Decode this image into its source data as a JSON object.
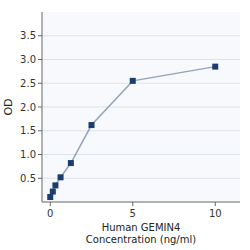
{
  "chart_data": {
    "type": "line",
    "x": [
      0,
      0.156,
      0.313,
      0.625,
      1.25,
      2.5,
      5,
      10
    ],
    "series": [
      {
        "color": "#1a3f6f",
        "marker": "square",
        "values": [
          0.105,
          0.22,
          0.35,
          0.52,
          0.82,
          1.62,
          2.55,
          2.85
        ]
      }
    ],
    "x_label": "Human GEMIN4\nConcentration (ng/ml)",
    "y_label": "OD",
    "xlim": [
      -0.5,
      11.5
    ],
    "ylim": [
      0,
      4.0
    ],
    "xticks": [
      0,
      5,
      10
    ],
    "yticks": [
      {
        "value": 0.5,
        "label": "0.5"
      },
      {
        "value": 1.0,
        "label": "1.0"
      },
      {
        "value": 1.5,
        "label": "1.5"
      },
      {
        "value": 2.0,
        "label": "2.0"
      },
      {
        "value": 2.5,
        "label": "2.5"
      },
      {
        "value": 3.0,
        "label": "3.0"
      },
      {
        "value": 3.5,
        "label": "3.5"
      }
    ],
    "grid": true
  }
}
